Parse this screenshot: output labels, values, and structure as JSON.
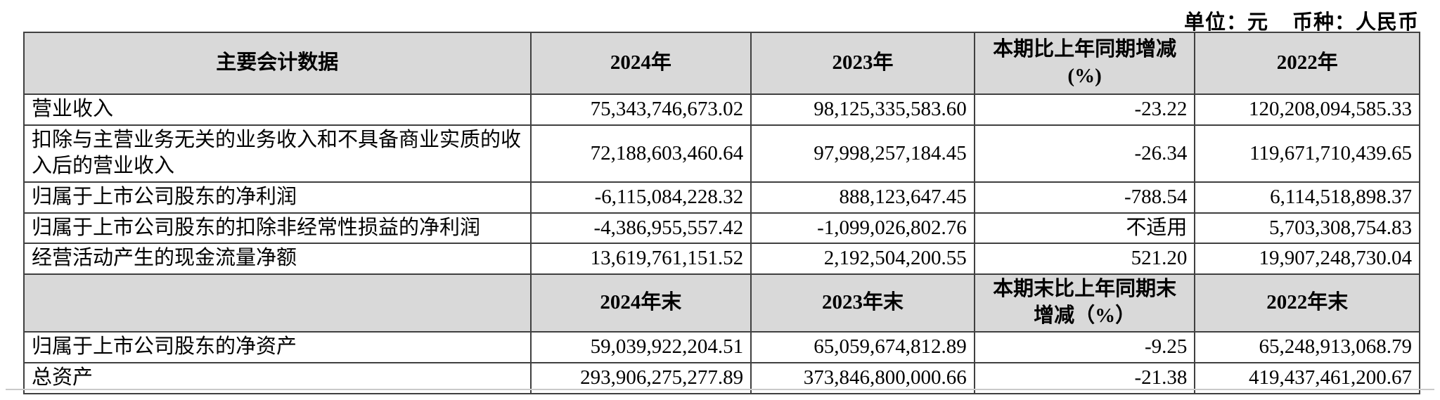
{
  "caption": {
    "unit": "单位：元",
    "currency": "币种：人民币"
  },
  "table": {
    "header_period": [
      "主要会计数据",
      "2024年",
      "2023年",
      "本期比上年同期增减\n(%)",
      "2022年"
    ],
    "rows_period": [
      {
        "label": "营业收入",
        "values": [
          "75,343,746,673.02",
          "98,125,335,583.60",
          "-23.22",
          "120,208,094,585.33"
        ]
      },
      {
        "label": "扣除与主营业务无关的业务收入和不具备商业实质的收入后的营业收入",
        "values": [
          "72,188,603,460.64",
          "97,998,257,184.45",
          "-26.34",
          "119,671,710,439.65"
        ]
      },
      {
        "label": "归属于上市公司股东的净利润",
        "values": [
          "-6,115,084,228.32",
          "888,123,647.45",
          "-788.54",
          "6,114,518,898.37"
        ]
      },
      {
        "label": "归属于上市公司股东的扣除非经常性损益的净利润",
        "values": [
          "-4,386,955,557.42",
          "-1,099,026,802.76",
          "不适用",
          "5,703,308,754.83"
        ]
      },
      {
        "label": "经营活动产生的现金流量净额",
        "values": [
          "13,619,761,151.52",
          "2,192,504,200.55",
          "521.20",
          "19,907,248,730.04"
        ]
      }
    ],
    "header_eop": [
      "",
      "2024年末",
      "2023年末",
      "本期末比上年同期末\n增减（%）",
      "2022年末"
    ],
    "rows_eop": [
      {
        "label": "归属于上市公司股东的净资产",
        "values": [
          "59,039,922,204.51",
          "65,059,674,812.89",
          "-9.25",
          "65,248,913,068.79"
        ]
      },
      {
        "label": "总资产",
        "values": [
          "293,906,275,277.89",
          "373,846,800,000.66",
          "-21.38",
          "419,437,461,200.67"
        ]
      }
    ]
  }
}
